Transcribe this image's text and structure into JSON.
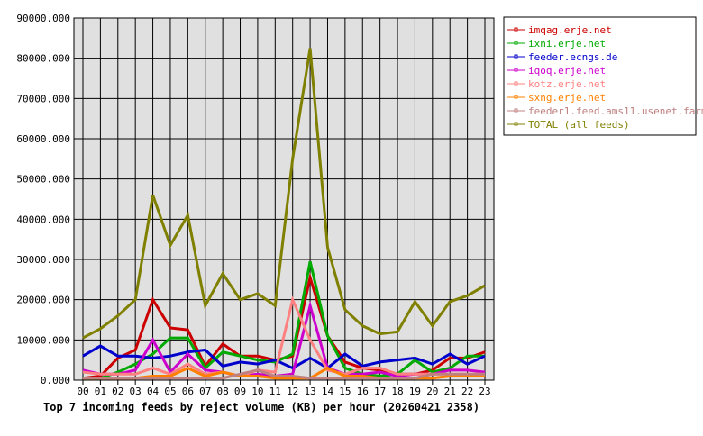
{
  "chart_data": {
    "type": "line",
    "title": "Top 7 incoming feeds by reject volume (KB) per hour (20260421 2358)",
    "xlabel": "",
    "ylabel": "",
    "categories": [
      "00",
      "01",
      "02",
      "03",
      "04",
      "05",
      "06",
      "07",
      "08",
      "09",
      "10",
      "11",
      "12",
      "13",
      "14",
      "15",
      "16",
      "17",
      "18",
      "19",
      "20",
      "21",
      "22",
      "23"
    ],
    "ylim": [
      0,
      90000
    ],
    "yticks": [
      "0.000",
      "10000.000",
      "20000.000",
      "30000.000",
      "40000.000",
      "50000.000",
      "60000.000",
      "70000.000",
      "80000.000",
      "90000.000"
    ],
    "grid": true,
    "legend_placement": "right",
    "series": [
      {
        "name": "imqag.erje.net",
        "color": "#cc0000",
        "values": [
          500,
          1000,
          5500,
          7500,
          20000,
          13000,
          12500,
          3500,
          9000,
          6000,
          6000,
          5000,
          6000,
          25500,
          11000,
          4500,
          3000,
          2500,
          1500,
          1500,
          2500,
          5500,
          5500,
          7000
        ]
      },
      {
        "name": "ixni.erje.net",
        "color": "#00aa00",
        "values": [
          500,
          500,
          2000,
          4000,
          6500,
          10500,
          10500,
          3000,
          7000,
          6000,
          5000,
          4500,
          6500,
          29500,
          11000,
          3000,
          1500,
          1000,
          1500,
          5000,
          2000,
          3000,
          6000,
          6000
        ]
      },
      {
        "name": "feeder.ecngs.de",
        "color": "#0000cc",
        "values": [
          6000,
          8500,
          6000,
          6000,
          5500,
          6000,
          7000,
          7500,
          3500,
          4500,
          4000,
          5000,
          3000,
          5500,
          3000,
          6500,
          3500,
          4500,
          5000,
          5500,
          4000,
          6500,
          4000,
          6000
        ]
      },
      {
        "name": "iqoq.erje.net",
        "color": "#cc00cc",
        "values": [
          2500,
          1500,
          1500,
          2500,
          10000,
          2000,
          6500,
          2500,
          2000,
          1000,
          1500,
          1000,
          1500,
          18500,
          3000,
          1500,
          1500,
          2000,
          1000,
          1500,
          1500,
          2500,
          2500,
          2000
        ]
      },
      {
        "name": "kotz.erje.net",
        "color": "#ff8080",
        "values": [
          2000,
          1500,
          1500,
          1500,
          3000,
          1500,
          4000,
          1500,
          2000,
          1000,
          2500,
          2000,
          20000,
          10000,
          2500,
          1500,
          3000,
          3000,
          1500,
          1500,
          1500,
          1500,
          1500,
          1500
        ]
      },
      {
        "name": "sxng.erje.net",
        "color": "#ff8000",
        "values": [
          500,
          500,
          500,
          500,
          1000,
          1000,
          3000,
          1000,
          2000,
          1000,
          1000,
          500,
          500,
          500,
          3000,
          1000,
          1000,
          500,
          500,
          500,
          500,
          1000,
          1000,
          1000
        ]
      },
      {
        "name": "feeder1.feed.ams11.usenet.farm",
        "color": "#c08080",
        "values": [
          500,
          500,
          500,
          500,
          500,
          500,
          500,
          500,
          500,
          1500,
          2500,
          1000,
          1000,
          500,
          500,
          500,
          500,
          500,
          500,
          500,
          1500,
          1500,
          1500,
          1500
        ]
      },
      {
        "name": "TOTAL (all feeds)",
        "color": "#808000",
        "values": [
          10500,
          12800,
          16000,
          20000,
          46000,
          33500,
          41000,
          18500,
          26500,
          20000,
          21500,
          18500,
          55000,
          82500,
          33000,
          17500,
          13500,
          11500,
          12000,
          19500,
          13500,
          19500,
          21000,
          23500
        ]
      }
    ]
  }
}
